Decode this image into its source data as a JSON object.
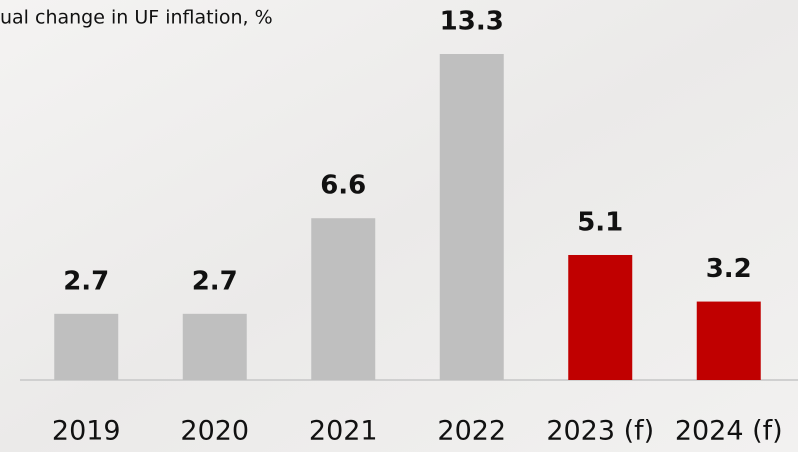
{
  "chart_data": {
    "type": "bar",
    "title": "ual change in UF inflation, %",
    "categories": [
      "2019",
      "2020",
      "2021",
      "2022",
      "2023 (f)",
      "2024 (f)"
    ],
    "values": [
      2.7,
      2.7,
      6.6,
      13.3,
      5.1,
      3.2
    ],
    "colors": [
      "#bfbfbf",
      "#bfbfbf",
      "#bfbfbf",
      "#bfbfbf",
      "#c00000",
      "#c00000"
    ]
  }
}
